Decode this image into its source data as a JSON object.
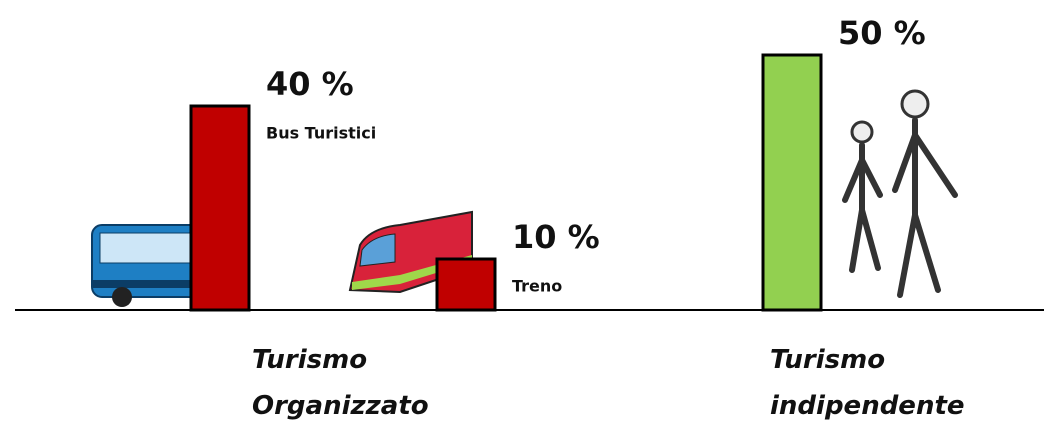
{
  "chart_data": {
    "type": "bar",
    "categories": [
      "Bus Turistici",
      "Treno",
      null
    ],
    "values": [
      40,
      10,
      50
    ],
    "value_labels": [
      "40 %",
      "10 %",
      "50 %"
    ],
    "colors": [
      "#c00000",
      "#c00000",
      "#92d050"
    ],
    "groups": [
      "Turismo Organizzato",
      "Turismo indipendente"
    ]
  }
}
